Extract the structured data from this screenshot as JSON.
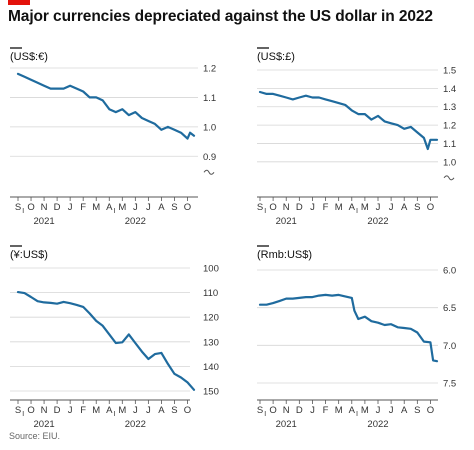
{
  "title": "Major currencies depreciated against the US dollar in 2022",
  "source": "Source: EIU.",
  "colors": {
    "line": "#1f6b9e",
    "grid": "#d6d6d6",
    "axis": "#555555",
    "brand": "#e3120b"
  },
  "month_ticks": [
    "S",
    "O",
    "N",
    "D",
    "J",
    "F",
    "M",
    "A",
    "M",
    "J",
    "J",
    "A",
    "S",
    "O"
  ],
  "year_labels": [
    {
      "label": "2021",
      "month": 2
    },
    {
      "label": "2022",
      "month": 9
    }
  ],
  "chart_data": [
    {
      "type": "line",
      "title": "(US$:€)",
      "ylim": [
        0.85,
        1.2
      ],
      "y_ticks": [
        1.2,
        1.1,
        1.0,
        0.9
      ],
      "y_tick_labels": [
        "1.2",
        "1.1",
        "1.0",
        "0.9"
      ],
      "inverted": false,
      "axis_break": true,
      "x": [
        0,
        0.5,
        1,
        1.5,
        2,
        2.5,
        3,
        3.5,
        4,
        4.5,
        5,
        5.5,
        6,
        6.5,
        7,
        7.5,
        8,
        8.5,
        9,
        9.5,
        10,
        10.5,
        11,
        11.5,
        12,
        12.5,
        13,
        13.2,
        13.5
      ],
      "series": [
        {
          "values": [
            1.18,
            1.17,
            1.16,
            1.15,
            1.14,
            1.13,
            1.13,
            1.13,
            1.14,
            1.13,
            1.12,
            1.1,
            1.1,
            1.09,
            1.06,
            1.05,
            1.06,
            1.04,
            1.05,
            1.03,
            1.02,
            1.01,
            0.99,
            1.0,
            0.99,
            0.98,
            0.96,
            0.98,
            0.97
          ]
        }
      ]
    },
    {
      "type": "line",
      "title": "(US$:£)",
      "ylim": [
        0.95,
        1.5
      ],
      "y_ticks": [
        1.5,
        1.4,
        1.3,
        1.2,
        1.1,
        1.0
      ],
      "y_tick_labels": [
        "1.5",
        "1.4",
        "1.3",
        "1.2",
        "1.1",
        "1.0"
      ],
      "inverted": false,
      "axis_break": true,
      "x": [
        0,
        0.5,
        1,
        1.5,
        2,
        2.5,
        3,
        3.5,
        4,
        4.5,
        5,
        5.5,
        6,
        6.5,
        7,
        7.5,
        8,
        8.5,
        9,
        9.5,
        10,
        10.5,
        11,
        11.5,
        12,
        12.5,
        12.8,
        13,
        13.5
      ],
      "series": [
        {
          "values": [
            1.38,
            1.37,
            1.37,
            1.36,
            1.35,
            1.34,
            1.35,
            1.36,
            1.35,
            1.35,
            1.34,
            1.33,
            1.32,
            1.31,
            1.28,
            1.26,
            1.26,
            1.23,
            1.25,
            1.22,
            1.21,
            1.2,
            1.18,
            1.19,
            1.16,
            1.13,
            1.07,
            1.12,
            1.12
          ]
        }
      ]
    },
    {
      "type": "line",
      "title": "(¥:US$)",
      "ylim": [
        100,
        150
      ],
      "y_ticks": [
        100,
        110,
        120,
        130,
        140,
        150
      ],
      "y_tick_labels": [
        "100",
        "110",
        "120",
        "130",
        "140",
        "150"
      ],
      "inverted": true,
      "axis_break": false,
      "x": [
        0,
        0.5,
        1,
        1.5,
        2,
        2.5,
        3,
        3.5,
        4,
        4.5,
        5,
        5.5,
        6,
        6.5,
        7,
        7.5,
        8,
        8.5,
        9,
        9.5,
        10,
        10.5,
        11,
        11.5,
        12,
        12.5,
        13,
        13.5
      ],
      "series": [
        {
          "values": [
            109.8,
            110.2,
            111.8,
            113.5,
            114.0,
            114.2,
            114.5,
            113.8,
            114.3,
            115.0,
            115.8,
            118.5,
            121.5,
            123.5,
            127.0,
            130.5,
            130.2,
            127.0,
            130.5,
            134.0,
            137.0,
            135.0,
            134.5,
            139.0,
            143.0,
            144.5,
            146.5,
            149.5
          ]
        }
      ]
    },
    {
      "type": "line",
      "title": "(Rmb:US$)",
      "ylim": [
        6.0,
        7.5
      ],
      "y_ticks": [
        6.0,
        6.5,
        7.0,
        7.5
      ],
      "y_tick_labels": [
        "6.0",
        "6.5",
        "7.0",
        "7.5"
      ],
      "inverted": true,
      "axis_break": false,
      "x": [
        0,
        0.5,
        1,
        1.5,
        2,
        2.5,
        3,
        3.5,
        4,
        4.5,
        5,
        5.5,
        6,
        6.5,
        7,
        7.2,
        7.5,
        8,
        8.5,
        9,
        9.5,
        10,
        10.5,
        11,
        11.5,
        12,
        12.5,
        13,
        13.2,
        13.5
      ],
      "series": [
        {
          "values": [
            6.46,
            6.46,
            6.44,
            6.41,
            6.38,
            6.38,
            6.37,
            6.36,
            6.36,
            6.34,
            6.33,
            6.34,
            6.33,
            6.35,
            6.37,
            6.54,
            6.65,
            6.62,
            6.68,
            6.7,
            6.73,
            6.72,
            6.76,
            6.77,
            6.78,
            6.83,
            6.95,
            6.96,
            7.2,
            7.21
          ]
        }
      ]
    }
  ]
}
